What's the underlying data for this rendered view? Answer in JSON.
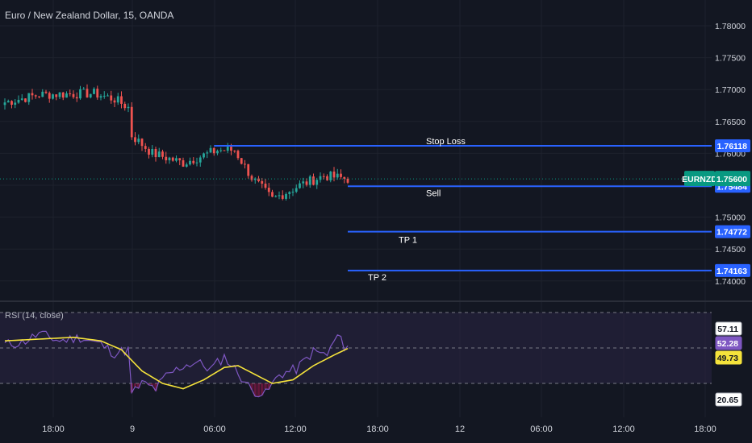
{
  "header": {
    "title": "Euro / New Zealand Dollar, 15, OANDA"
  },
  "rsi_panel": {
    "title": "RSI (14, close)"
  },
  "colors": {
    "background": "#131722",
    "grid": "#1e222d",
    "up": "#26a69a",
    "down": "#ef5350",
    "level_line": "#2962ff",
    "level_tag": "#2962ff",
    "symbol_tag": "#089981",
    "rsi_line": "#7e57c2",
    "rsi_ma": "#f5e33b",
    "rsi_band": "#2a2444"
  },
  "chart_data": [
    {
      "type": "candlestick",
      "title": "Euro / New Zealand Dollar, 15, OANDA",
      "ylim": [
        1.7385,
        1.7818
      ],
      "yticks": [
        "1.78000",
        "1.77500",
        "1.77000",
        "1.76500",
        "1.76000",
        "1.75500",
        "1.75000",
        "1.74500",
        "1.74000"
      ],
      "xticks": [
        "18:00",
        "9",
        "06:00",
        "12:00",
        "18:00",
        "12",
        "06:00",
        "12:00",
        "18:00"
      ],
      "price_anchors": [
        {
          "bar": 0,
          "price": 1.768
        },
        {
          "bar": 10,
          "price": 1.7692
        },
        {
          "bar": 26,
          "price": 1.7694
        },
        {
          "bar": 32,
          "price": 1.7685
        },
        {
          "bar": 36,
          "price": 1.7672
        },
        {
          "bar": 37,
          "price": 1.7628
        },
        {
          "bar": 43,
          "price": 1.76
        },
        {
          "bar": 52,
          "price": 1.7585
        },
        {
          "bar": 62,
          "price": 1.7605
        },
        {
          "bar": 67,
          "price": 1.7605
        },
        {
          "bar": 72,
          "price": 1.7562
        },
        {
          "bar": 78,
          "price": 1.7528
        },
        {
          "bar": 86,
          "price": 1.755
        },
        {
          "bar": 93,
          "price": 1.7565
        },
        {
          "bar": 100,
          "price": 1.756
        }
      ],
      "levels": [
        {
          "name": "Stop Loss",
          "value": 1.76118,
          "tag": "1.76118",
          "start_bar": 61
        },
        {
          "name": "Sell",
          "value": 1.75484,
          "tag": "1.75484",
          "start_bar": 100
        },
        {
          "name": "TP 1",
          "value": 1.74772,
          "tag": "1.74772",
          "start_bar": 100
        },
        {
          "name": "TP 2",
          "value": 1.74163,
          "tag": "1.74163",
          "start_bar": 100
        }
      ],
      "current": {
        "symbol": "EURNZD",
        "value": 1.756,
        "tag": "1.75600"
      }
    },
    {
      "type": "line",
      "title": "RSI (14, close)",
      "ylim": [
        15,
        62
      ],
      "band": [
        30,
        70
      ],
      "midline": 50,
      "markers": [
        {
          "value": 57.11,
          "label": "57.11",
          "style": "plain"
        },
        {
          "value": 52.28,
          "label": "52.28",
          "style": "rsi"
        },
        {
          "value": 49.73,
          "label": "49.73",
          "style": "ma"
        },
        {
          "value": 20.65,
          "label": "20.65",
          "style": "plain"
        }
      ],
      "rsi_anchors": [
        {
          "bar": 0,
          "value": 52
        },
        {
          "bar": 5,
          "value": 53
        },
        {
          "bar": 10,
          "value": 58
        },
        {
          "bar": 16,
          "value": 54
        },
        {
          "bar": 22,
          "value": 56
        },
        {
          "bar": 28,
          "value": 52
        },
        {
          "bar": 32,
          "value": 47
        },
        {
          "bar": 36,
          "value": 49
        },
        {
          "bar": 37,
          "value": 24
        },
        {
          "bar": 40,
          "value": 30
        },
        {
          "bar": 44,
          "value": 27
        },
        {
          "bar": 47,
          "value": 34
        },
        {
          "bar": 52,
          "value": 40
        },
        {
          "bar": 56,
          "value": 42
        },
        {
          "bar": 60,
          "value": 38
        },
        {
          "bar": 64,
          "value": 45
        },
        {
          "bar": 68,
          "value": 36
        },
        {
          "bar": 72,
          "value": 26
        },
        {
          "bar": 76,
          "value": 24
        },
        {
          "bar": 80,
          "value": 35
        },
        {
          "bar": 85,
          "value": 38
        },
        {
          "bar": 90,
          "value": 48
        },
        {
          "bar": 94,
          "value": 46
        },
        {
          "bar": 97,
          "value": 57
        },
        {
          "bar": 99,
          "value": 51
        },
        {
          "bar": 100,
          "value": 52
        }
      ],
      "ma_anchors": [
        {
          "bar": 0,
          "value": 54
        },
        {
          "bar": 10,
          "value": 55
        },
        {
          "bar": 20,
          "value": 56
        },
        {
          "bar": 28,
          "value": 54
        },
        {
          "bar": 34,
          "value": 49
        },
        {
          "bar": 40,
          "value": 37
        },
        {
          "bar": 46,
          "value": 30
        },
        {
          "bar": 52,
          "value": 27
        },
        {
          "bar": 58,
          "value": 32
        },
        {
          "bar": 64,
          "value": 39
        },
        {
          "bar": 68,
          "value": 40
        },
        {
          "bar": 72,
          "value": 36
        },
        {
          "bar": 78,
          "value": 30
        },
        {
          "bar": 84,
          "value": 32
        },
        {
          "bar": 90,
          "value": 40
        },
        {
          "bar": 96,
          "value": 46
        },
        {
          "bar": 100,
          "value": 49.7
        }
      ]
    }
  ]
}
